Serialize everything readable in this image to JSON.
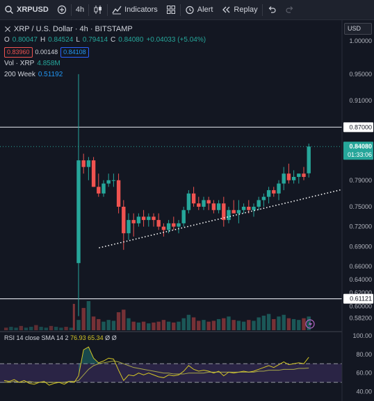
{
  "toolbar": {
    "symbol": "XRPUSD",
    "interval": "4h",
    "indicators_label": "Indicators",
    "alert_label": "Alert",
    "replay_label": "Replay"
  },
  "legend": {
    "title": "XRP / U.S. Dollar · 4h · BITSTAMP",
    "o_label": "O",
    "o_value": "0.80047",
    "h_label": "H",
    "h_value": "0.84524",
    "l_label": "L",
    "l_value": "0.79414",
    "c_label": "C",
    "c_value": "0.84080",
    "change": "+0.04033 (+5.04%)",
    "bid": "0.83960",
    "spread": "0.00148",
    "ask": "0.84108",
    "vol_label": "Vol · XRP",
    "vol_value": "4.858M",
    "ma_label": "200 Week",
    "ma_value": "0.51192"
  },
  "price_axis": {
    "unit": "USD",
    "ticks": [
      "1.00000",
      "0.95000",
      "0.91000",
      "0.87000",
      "0.84080",
      "0.79000",
      "0.75000",
      "0.72000",
      "0.69000",
      "0.66000",
      "0.64000",
      "0.62000",
      "0.61121",
      "0.60000",
      "0.58200"
    ],
    "last_price": "0.84080",
    "countdown": "01:33:06",
    "line_upper": "0.87000",
    "line_lower": "0.61121"
  },
  "rsi": {
    "label": "RSI 14 close SMA 14 2",
    "value": "76.93",
    "sma_value": "65.34",
    "extra1": "Ø",
    "extra2": "Ø",
    "ticks": [
      "100.00",
      "80.00",
      "60.00",
      "40.00"
    ]
  },
  "colors": {
    "up": "#26a69a",
    "down": "#ef5350",
    "rsi_line": "#d4c625",
    "band": "#7e57c2"
  },
  "chart_data": {
    "type": "candlestick",
    "candles": [
      {
        "o": 0.665,
        "h": 0.95,
        "l": 0.585,
        "c": 0.82
      },
      {
        "o": 0.82,
        "h": 0.83,
        "l": 0.8,
        "c": 0.81
      },
      {
        "o": 0.81,
        "h": 0.825,
        "l": 0.79,
        "c": 0.82
      },
      {
        "o": 0.82,
        "h": 0.825,
        "l": 0.78,
        "c": 0.78
      },
      {
        "o": 0.78,
        "h": 0.8,
        "l": 0.765,
        "c": 0.77
      },
      {
        "o": 0.77,
        "h": 0.79,
        "l": 0.765,
        "c": 0.785
      },
      {
        "o": 0.785,
        "h": 0.8,
        "l": 0.78,
        "c": 0.79
      },
      {
        "o": 0.79,
        "h": 0.8,
        "l": 0.78,
        "c": 0.79
      },
      {
        "o": 0.79,
        "h": 0.8,
        "l": 0.74,
        "c": 0.75
      },
      {
        "o": 0.75,
        "h": 0.76,
        "l": 0.685,
        "c": 0.71
      },
      {
        "o": 0.71,
        "h": 0.74,
        "l": 0.7,
        "c": 0.73
      },
      {
        "o": 0.73,
        "h": 0.74,
        "l": 0.705,
        "c": 0.725
      },
      {
        "o": 0.725,
        "h": 0.74,
        "l": 0.72,
        "c": 0.735
      },
      {
        "o": 0.735,
        "h": 0.745,
        "l": 0.72,
        "c": 0.73
      },
      {
        "o": 0.73,
        "h": 0.74,
        "l": 0.72,
        "c": 0.735
      },
      {
        "o": 0.735,
        "h": 0.74,
        "l": 0.72,
        "c": 0.73
      },
      {
        "o": 0.73,
        "h": 0.74,
        "l": 0.715,
        "c": 0.72
      },
      {
        "o": 0.72,
        "h": 0.725,
        "l": 0.705,
        "c": 0.715
      },
      {
        "o": 0.715,
        "h": 0.73,
        "l": 0.71,
        "c": 0.725
      },
      {
        "o": 0.725,
        "h": 0.735,
        "l": 0.715,
        "c": 0.72
      },
      {
        "o": 0.72,
        "h": 0.73,
        "l": 0.71,
        "c": 0.725
      },
      {
        "o": 0.725,
        "h": 0.75,
        "l": 0.72,
        "c": 0.745
      },
      {
        "o": 0.745,
        "h": 0.775,
        "l": 0.74,
        "c": 0.77
      },
      {
        "o": 0.77,
        "h": 0.78,
        "l": 0.75,
        "c": 0.755
      },
      {
        "o": 0.755,
        "h": 0.765,
        "l": 0.745,
        "c": 0.75
      },
      {
        "o": 0.75,
        "h": 0.765,
        "l": 0.745,
        "c": 0.76
      },
      {
        "o": 0.76,
        "h": 0.765,
        "l": 0.745,
        "c": 0.755
      },
      {
        "o": 0.755,
        "h": 0.76,
        "l": 0.74,
        "c": 0.745
      },
      {
        "o": 0.745,
        "h": 0.76,
        "l": 0.74,
        "c": 0.755
      },
      {
        "o": 0.755,
        "h": 0.765,
        "l": 0.72,
        "c": 0.73
      },
      {
        "o": 0.73,
        "h": 0.75,
        "l": 0.725,
        "c": 0.745
      },
      {
        "o": 0.745,
        "h": 0.76,
        "l": 0.74,
        "c": 0.74
      },
      {
        "o": 0.74,
        "h": 0.76,
        "l": 0.725,
        "c": 0.745
      },
      {
        "o": 0.745,
        "h": 0.755,
        "l": 0.74,
        "c": 0.75
      },
      {
        "o": 0.75,
        "h": 0.76,
        "l": 0.74,
        "c": 0.745
      },
      {
        "o": 0.745,
        "h": 0.755,
        "l": 0.735,
        "c": 0.75
      },
      {
        "o": 0.75,
        "h": 0.765,
        "l": 0.745,
        "c": 0.76
      },
      {
        "o": 0.76,
        "h": 0.77,
        "l": 0.75,
        "c": 0.765
      },
      {
        "o": 0.765,
        "h": 0.78,
        "l": 0.755,
        "c": 0.775
      },
      {
        "o": 0.775,
        "h": 0.78,
        "l": 0.765,
        "c": 0.77
      },
      {
        "o": 0.77,
        "h": 0.79,
        "l": 0.76,
        "c": 0.785
      },
      {
        "o": 0.785,
        "h": 0.81,
        "l": 0.775,
        "c": 0.8
      },
      {
        "o": 0.8,
        "h": 0.815,
        "l": 0.785,
        "c": 0.79
      },
      {
        "o": 0.79,
        "h": 0.805,
        "l": 0.785,
        "c": 0.795
      },
      {
        "o": 0.795,
        "h": 0.8,
        "l": 0.785,
        "c": 0.8
      },
      {
        "o": 0.8,
        "h": 0.81,
        "l": 0.79,
        "c": 0.795
      },
      {
        "o": 0.80047,
        "h": 0.84524,
        "l": 0.79414,
        "c": 0.8408
      }
    ],
    "volume": [
      1.2,
      2.6,
      3.4,
      1.6,
      1.3,
      1.0,
      1.2,
      1.1,
      2.1,
      2.4,
      1.4,
      1.0,
      0.9,
      1.0,
      0.8,
      0.9,
      1.0,
      1.2,
      1.0,
      0.9,
      1.0,
      1.4,
      1.8,
      1.5,
      1.1,
      1.2,
      1.0,
      1.1,
      1.3,
      1.4,
      1.6,
      1.2,
      1.1,
      1.0,
      1.2,
      1.1,
      1.5,
      1.7,
      1.9,
      1.3,
      1.6,
      1.8,
      1.4,
      1.3,
      1.2,
      1.4,
      1.6
    ],
    "rsi": [
      57,
      85,
      88,
      76,
      71,
      73,
      76,
      75,
      63,
      52,
      58,
      57,
      60,
      58,
      60,
      58,
      56,
      55,
      58,
      57,
      58,
      62,
      68,
      64,
      62,
      63,
      62,
      60,
      62,
      57,
      61,
      60,
      61,
      62,
      61,
      62,
      64,
      66,
      68,
      66,
      69,
      72,
      69,
      70,
      71,
      70,
      76.93
    ],
    "rsi_sma": [
      52,
      58,
      64,
      68,
      70,
      71,
      72,
      73,
      72,
      70,
      68,
      66,
      65,
      64,
      63,
      62,
      61,
      60,
      60,
      59,
      59,
      59,
      60,
      60,
      60,
      60,
      61,
      61,
      61,
      61,
      61,
      61,
      61,
      61,
      61,
      61,
      62,
      62,
      63,
      63,
      63,
      64,
      64,
      64,
      65,
      65,
      65.34
    ],
    "trendline": [
      {
        "i": 2,
        "p": 0.688
      },
      {
        "i": 48,
        "p": 0.776
      }
    ],
    "price_range": [
      0.57,
      1.02
    ],
    "rsi_range": [
      30,
      100
    ],
    "rsi_bands": [
      70,
      50
    ]
  }
}
